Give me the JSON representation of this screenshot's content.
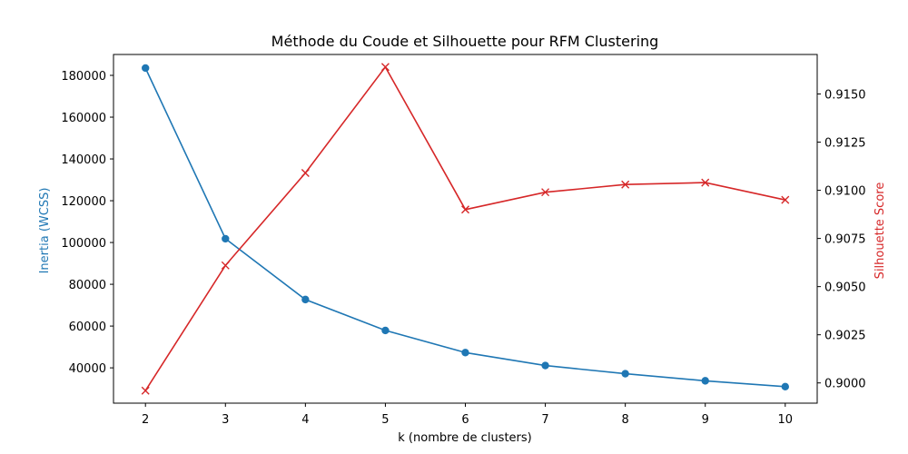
{
  "chart_data": {
    "type": "line",
    "title": "Méthode du Coude et Silhouette pour RFM Clustering",
    "xlabel": "k (nombre de clusters)",
    "ylabel_left": "Inertia (WCSS)",
    "ylabel_right": "Silhouette Score",
    "x": [
      2,
      3,
      4,
      5,
      6,
      7,
      8,
      9,
      10
    ],
    "x_ticks": [
      "2",
      "3",
      "4",
      "5",
      "6",
      "7",
      "8",
      "9",
      "10"
    ],
    "y_left_ticks": [
      "40000",
      "60000",
      "80000",
      "100000",
      "120000",
      "140000",
      "160000",
      "180000"
    ],
    "y_right_ticks": [
      "0.9000",
      "0.9025",
      "0.9050",
      "0.9075",
      "0.9100",
      "0.9125",
      "0.9150"
    ],
    "y_left_lim": [
      23100,
      190000
    ],
    "y_right_lim": [
      0.89895,
      0.91705
    ],
    "grid": false,
    "series": [
      {
        "axis": "left",
        "marker": "circle",
        "color": "#1f77b4",
        "values": [
          183500,
          101800,
          72700,
          57900,
          47300,
          41100,
          37200,
          33800,
          31000
        ]
      },
      {
        "axis": "right",
        "marker": "x",
        "color": "#d62728",
        "values": [
          0.8996,
          0.9061,
          0.9109,
          0.9164,
          0.909,
          0.9099,
          0.9103,
          0.9104,
          0.9095
        ]
      }
    ]
  }
}
